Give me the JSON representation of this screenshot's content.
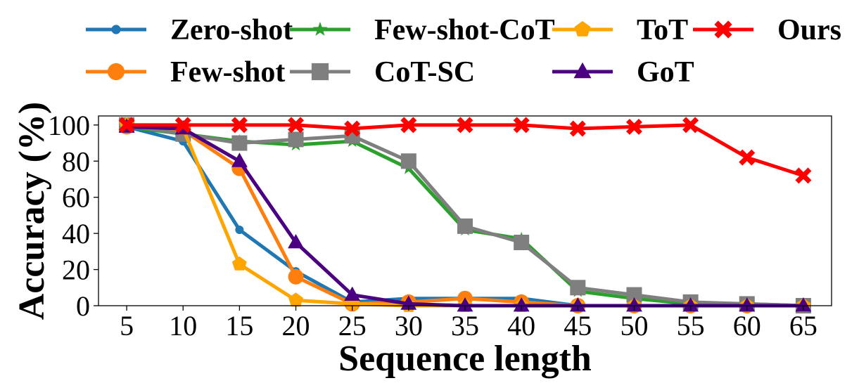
{
  "chart_data": {
    "type": "line",
    "xlabel": "Sequence length",
    "ylabel": "Accuracy (%)",
    "x": [
      5,
      10,
      15,
      20,
      25,
      30,
      35,
      40,
      45,
      50,
      55,
      60,
      65
    ],
    "xlim": [
      2.5,
      67.5
    ],
    "ylim": [
      0,
      105
    ],
    "yticks": [
      0,
      20,
      40,
      60,
      80,
      100
    ],
    "grid": false,
    "legend_position": "top",
    "series": [
      {
        "name": "Zero-shot",
        "color": "#1f77b4",
        "marker": "dot",
        "values": [
          99,
          91,
          42,
          19,
          2,
          4,
          4,
          4,
          0,
          0,
          0,
          0,
          0
        ]
      },
      {
        "name": "Few-shot",
        "color": "#ff7f0e",
        "marker": "circle",
        "values": [
          99,
          97,
          76,
          16,
          1,
          2,
          4,
          2,
          0,
          0,
          0,
          0,
          0
        ]
      },
      {
        "name": "Few-shot-CoT",
        "color": "#2ca02c",
        "marker": "star",
        "values": [
          99,
          95,
          91,
          89,
          91,
          76,
          42,
          37,
          8,
          4,
          1,
          1,
          0
        ]
      },
      {
        "name": "CoT-SC",
        "color": "#7f7f7f",
        "marker": "square",
        "values": [
          100,
          95,
          90,
          92,
          94,
          80,
          44,
          35,
          10,
          6,
          2,
          1,
          0
        ]
      },
      {
        "name": "ToT",
        "color": "#ffa500",
        "marker": "pentagon",
        "values": [
          100,
          98,
          23,
          3,
          1,
          0,
          0,
          0,
          0,
          0,
          0,
          0,
          0
        ]
      },
      {
        "name": "GoT",
        "color": "#4b0082",
        "marker": "triangle",
        "values": [
          99,
          98,
          80,
          35,
          6,
          1,
          0,
          0,
          0,
          0,
          0,
          0,
          0
        ]
      },
      {
        "name": "Ours",
        "color": "#ff0000",
        "marker": "x",
        "values": [
          100,
          100,
          100,
          100,
          98,
          100,
          100,
          100,
          98,
          99,
          100,
          82,
          72
        ]
      }
    ]
  }
}
